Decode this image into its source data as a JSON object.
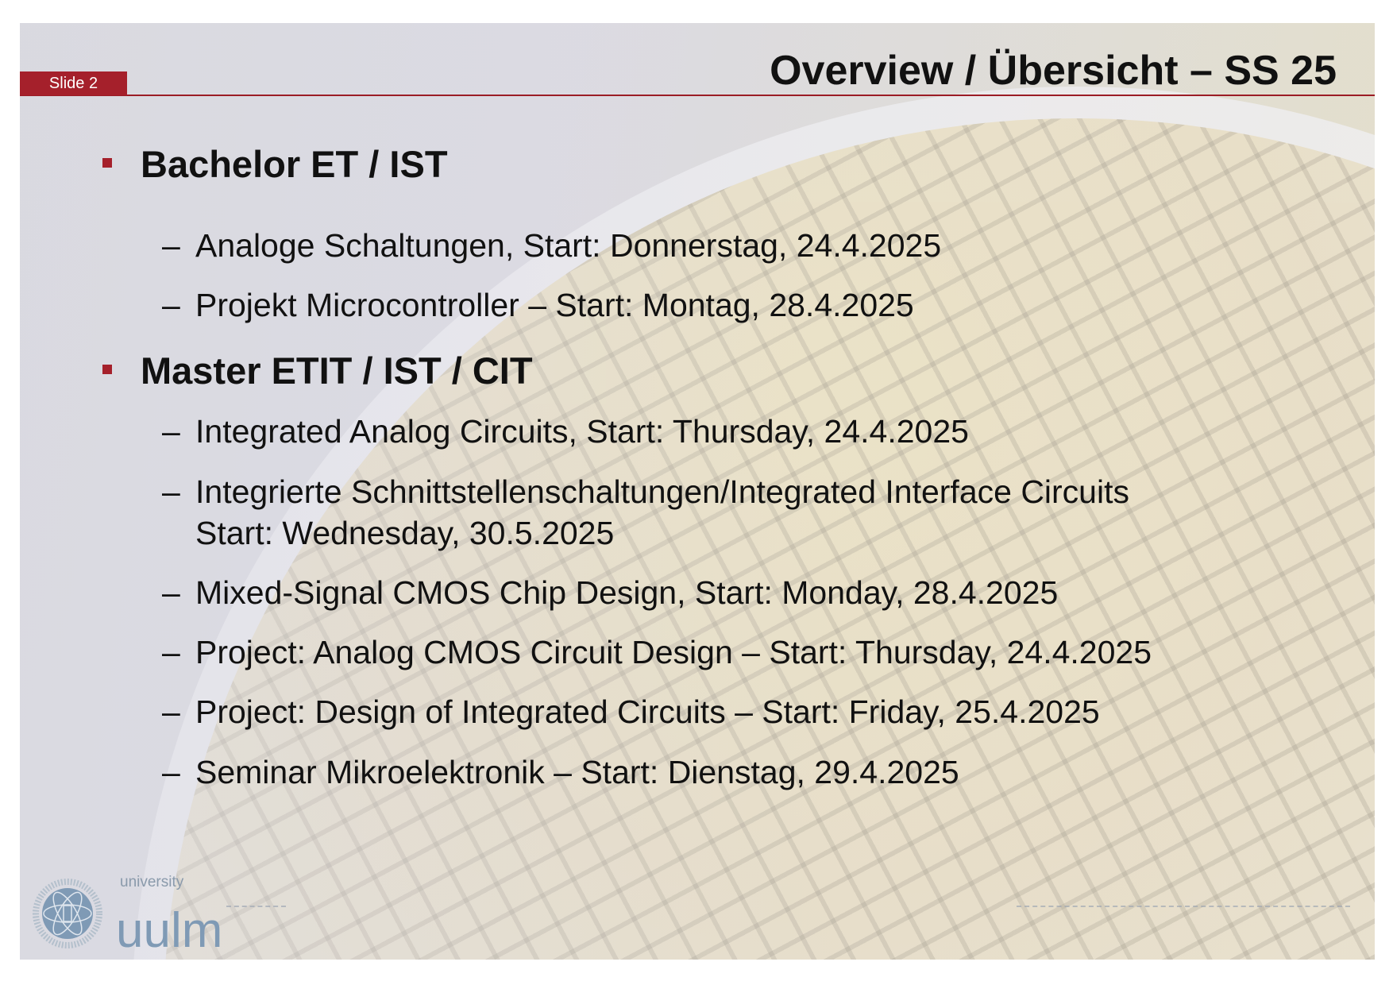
{
  "slide": {
    "number_label": "Slide 2",
    "title": "Overview / Übersicht – SS 25",
    "accent_color": "#a5202b"
  },
  "sections": [
    {
      "heading": "Bachelor ET / IST",
      "items": [
        "Analoge Schaltungen, Start: Donnerstag, 24.4.2025",
        "Projekt Microcontroller – Start: Montag, 28.4.2025"
      ]
    },
    {
      "heading": "Master ETIT / IST / CIT",
      "items": [
        "Integrated Analog Circuits, Start: Thursday, 24.4.2025",
        "Integrierte Schnittstellenschaltungen/Integrated Interface Circuits",
        "Start: Wednesday, 30.5.2025",
        "Mixed-Signal CMOS Chip Design, Start: Monday, 28.4.2025",
        "Project: Analog CMOS Circuit Design – Start: Thursday, 24.4.2025",
        "Project: Design of Integrated Circuits – Start: Friday, 25.4.2025",
        "Seminar Mikroelektronik – Start: Dienstag, 29.4.2025"
      ]
    }
  ],
  "footer": {
    "logo_small": "university",
    "logo_large": "uulm",
    "seal_text": "UNIVERSITAT ULM SCIENDO DOCENDO CURANDO",
    "logo_color": "#7f9ab5"
  },
  "dash": "–"
}
